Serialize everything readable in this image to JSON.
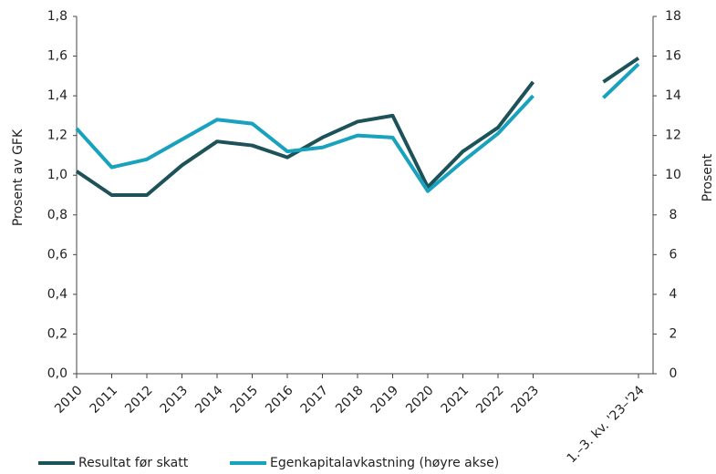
{
  "chart_data": {
    "type": "line",
    "categories": [
      "2010",
      "2011",
      "2012",
      "2013",
      "2014",
      "2015",
      "2016",
      "2017",
      "2018",
      "2019",
      "2020",
      "2021",
      "2022",
      "2023",
      null,
      null,
      "1.–3. kv. '23–'24"
    ],
    "series": [
      {
        "name": "Resultat før skatt",
        "color": "#1d5258",
        "axis": "y",
        "values": [
          1.02,
          0.9,
          0.9,
          1.05,
          1.17,
          1.15,
          1.09,
          1.19,
          1.27,
          1.3,
          0.94,
          1.12,
          1.24,
          1.47,
          null,
          1.47,
          1.59
        ]
      },
      {
        "name": "Egenkapitalavkastning (høyre akse)",
        "color": "#18a2bd",
        "axis": "y2",
        "values": [
          12.35,
          10.4,
          10.8,
          11.8,
          12.8,
          12.6,
          11.2,
          11.4,
          12.0,
          11.9,
          9.2,
          10.7,
          12.1,
          14.0,
          null,
          13.9,
          15.6
        ]
      }
    ],
    "ylabel": "Prosent av GFK",
    "y2label": "Prosent",
    "ylim": [
      0,
      1.8
    ],
    "yticks": [
      {
        "value": 0,
        "label": "0,0"
      },
      {
        "value": 0.2,
        "label": "0,2"
      },
      {
        "value": 0.4,
        "label": "0,4"
      },
      {
        "value": 0.6,
        "label": "0,6"
      },
      {
        "value": 0.8,
        "label": "0,8"
      },
      {
        "value": 1.0,
        "label": "1,0"
      },
      {
        "value": 1.2,
        "label": "1,2"
      },
      {
        "value": 1.4,
        "label": "1,4"
      },
      {
        "value": 1.6,
        "label": "1,6"
      },
      {
        "value": 1.8,
        "label": "1,8"
      }
    ],
    "y2lim": [
      0,
      18
    ],
    "y2ticks": [
      0,
      2,
      4,
      6,
      8,
      10,
      12,
      14,
      16,
      18
    ]
  }
}
